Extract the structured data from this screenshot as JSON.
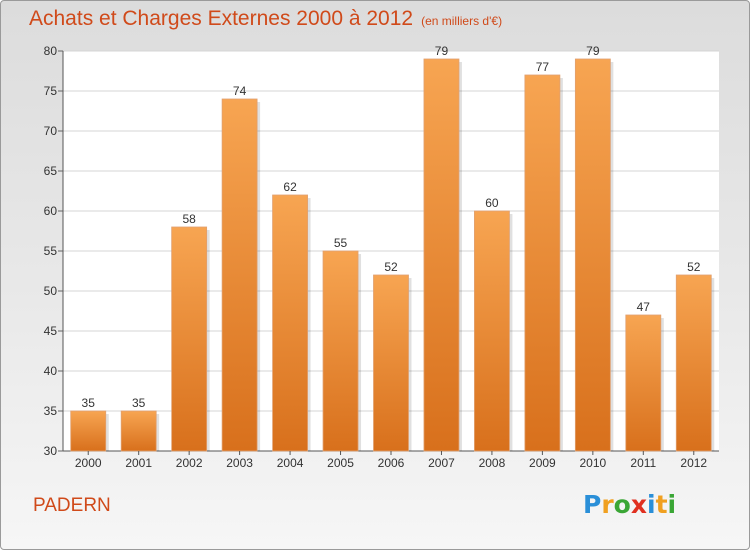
{
  "chart_data": {
    "type": "bar",
    "title": "Achats et Charges Externes 2000 à 2012",
    "subtitle": "(en milliers d'€)",
    "categories": [
      "2000",
      "2001",
      "2002",
      "2003",
      "2004",
      "2005",
      "2006",
      "2007",
      "2008",
      "2009",
      "2010",
      "2011",
      "2012"
    ],
    "values": [
      35,
      35,
      58,
      74,
      62,
      55,
      52,
      79,
      60,
      77,
      79,
      47,
      52
    ],
    "ylim": [
      30,
      80
    ],
    "yticks": [
      30,
      35,
      40,
      45,
      50,
      55,
      60,
      65,
      70,
      75,
      80
    ],
    "grid": true,
    "bar_color": "#f08a30"
  },
  "commune": "PADERN",
  "logo": {
    "letters": [
      "P",
      "r",
      "o",
      "x",
      "i",
      "t",
      "i"
    ],
    "colors": [
      "#2a8fd8",
      "#f0a020",
      "#3aa635",
      "#e03020",
      "#2a8fd8",
      "#f0a020",
      "#3aa635"
    ]
  }
}
